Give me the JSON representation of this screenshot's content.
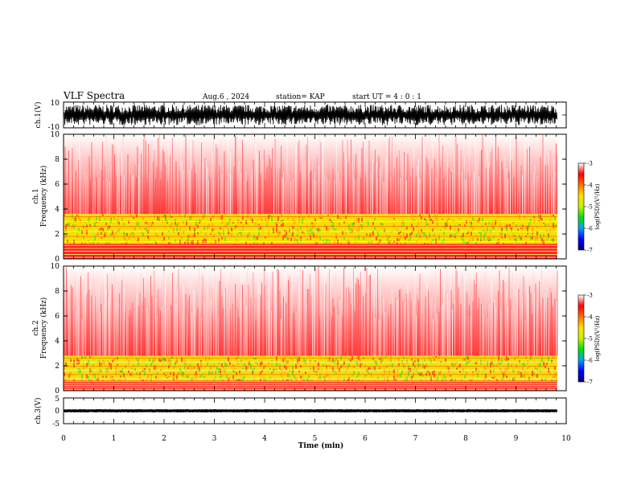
{
  "header": {
    "title": "VLF Spectra",
    "date": "Aug.6 , 2024",
    "station": "station= KAP",
    "start": "start UT = 4 : 0 : 1"
  },
  "chart_data": [
    {
      "type": "line",
      "name": "ch1-waveform",
      "ylabel": "ch.1(V)",
      "ylim": [
        -10,
        10
      ],
      "yticks": [
        "10",
        "-10"
      ],
      "xlim": [
        0,
        10
      ],
      "data_end_min": 9.82,
      "amplitude_range": [
        -8,
        8
      ]
    },
    {
      "type": "heatmap",
      "name": "ch1-spectrogram",
      "ylabel": "ch.1 Frequency (kHz)",
      "ylabel_lines": [
        "ch.1",
        "Frequency (kHz)"
      ],
      "ylim": [
        0,
        10
      ],
      "yticks": [
        "0",
        "2",
        "4",
        "6",
        "8",
        "10"
      ],
      "xlim": [
        0,
        10
      ],
      "data_end_min": 9.82,
      "band_kHz": [
        1.2,
        3.6
      ],
      "colorbar": {
        "label": "log(PSD)(V²/Hz)",
        "range": [
          -7,
          -3
        ],
        "ticks": [
          "-3",
          "-4",
          "-5",
          "-6",
          "-7"
        ]
      }
    },
    {
      "type": "heatmap",
      "name": "ch2-spectrogram",
      "ylabel": "ch.2 Frequency (kHz)",
      "ylabel_lines": [
        "ch.2",
        "Frequency (kHz)"
      ],
      "ylim": [
        0,
        10
      ],
      "yticks": [
        "0",
        "2",
        "4",
        "6",
        "8",
        "10"
      ],
      "xlim": [
        0,
        10
      ],
      "data_end_min": 9.82,
      "band_kHz": [
        0.8,
        2.8
      ],
      "colorbar": {
        "label": "log(PSD)(V²/Hz)",
        "range": [
          -7,
          -3
        ],
        "ticks": [
          "-3",
          "-4",
          "-5",
          "-6",
          "-7"
        ]
      }
    },
    {
      "type": "line",
      "name": "ch3-waveform",
      "ylabel": "ch.3(V)",
      "ylim": [
        -5,
        5
      ],
      "yticks": [
        "5",
        "0",
        "-5"
      ],
      "xlim": [
        0,
        10
      ],
      "data_end_min": 9.82,
      "amplitude_range": [
        -0.6,
        0.6
      ]
    }
  ],
  "xaxis": {
    "label": "Time (min)",
    "ticks": [
      "0",
      "1",
      "2",
      "3",
      "4",
      "5",
      "6",
      "7",
      "8",
      "9",
      "10"
    ]
  },
  "colors": {
    "scale": [
      "#000080",
      "#0000ff",
      "#00a0ff",
      "#00e000",
      "#c8f000",
      "#ffe000",
      "#ff7000",
      "#ff0000",
      "#ffffff"
    ]
  }
}
